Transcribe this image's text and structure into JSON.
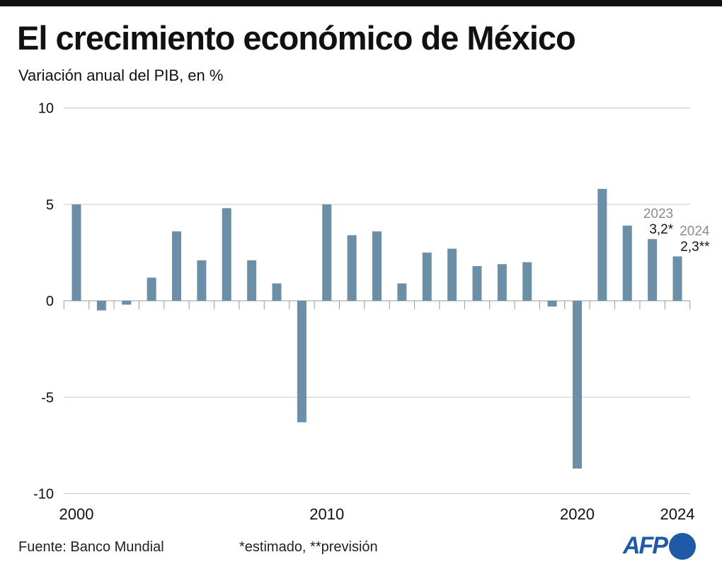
{
  "header": {
    "title": "El crecimiento económico de México",
    "subtitle": "Variación anual del PIB, en %"
  },
  "footer": {
    "source": "Fuente: Banco Mundial",
    "note": "*estimado, **previsión",
    "logo": "AFP"
  },
  "colors": {
    "bar": "#6b8fa6",
    "grid": "#c8c8c8",
    "annotation_year": "#8c8c8c",
    "logo": "#1f5aa6"
  },
  "chart_data": {
    "type": "bar",
    "title": "El crecimiento económico de México",
    "subtitle": "Variación anual del PIB, en %",
    "xlabel": "",
    "ylabel": "",
    "ylim": [
      -10,
      10
    ],
    "yticks": [
      "10",
      "5",
      "0",
      "-5",
      "-10"
    ],
    "ytick_values": [
      10,
      5,
      0,
      -5,
      -10
    ],
    "xtick_labels": [
      "2000",
      "2010",
      "2020",
      "2024"
    ],
    "grid": true,
    "categories": [
      2000,
      2001,
      2002,
      2003,
      2004,
      2005,
      2006,
      2007,
      2008,
      2009,
      2010,
      2011,
      2012,
      2013,
      2014,
      2015,
      2016,
      2017,
      2018,
      2019,
      2020,
      2021,
      2022,
      2023,
      2024
    ],
    "values": [
      5.0,
      -0.5,
      -0.2,
      1.2,
      3.6,
      2.1,
      4.8,
      2.1,
      0.9,
      -6.3,
      5.0,
      3.4,
      3.6,
      0.9,
      2.5,
      2.7,
      1.8,
      1.9,
      2.0,
      -0.3,
      -8.7,
      5.8,
      3.9,
      3.2,
      2.3
    ],
    "annotations": [
      {
        "year_label": "2023",
        "value_label": "3,2*",
        "category": 2023
      },
      {
        "year_label": "2024",
        "value_label": "2,3**",
        "category": 2024
      }
    ]
  }
}
